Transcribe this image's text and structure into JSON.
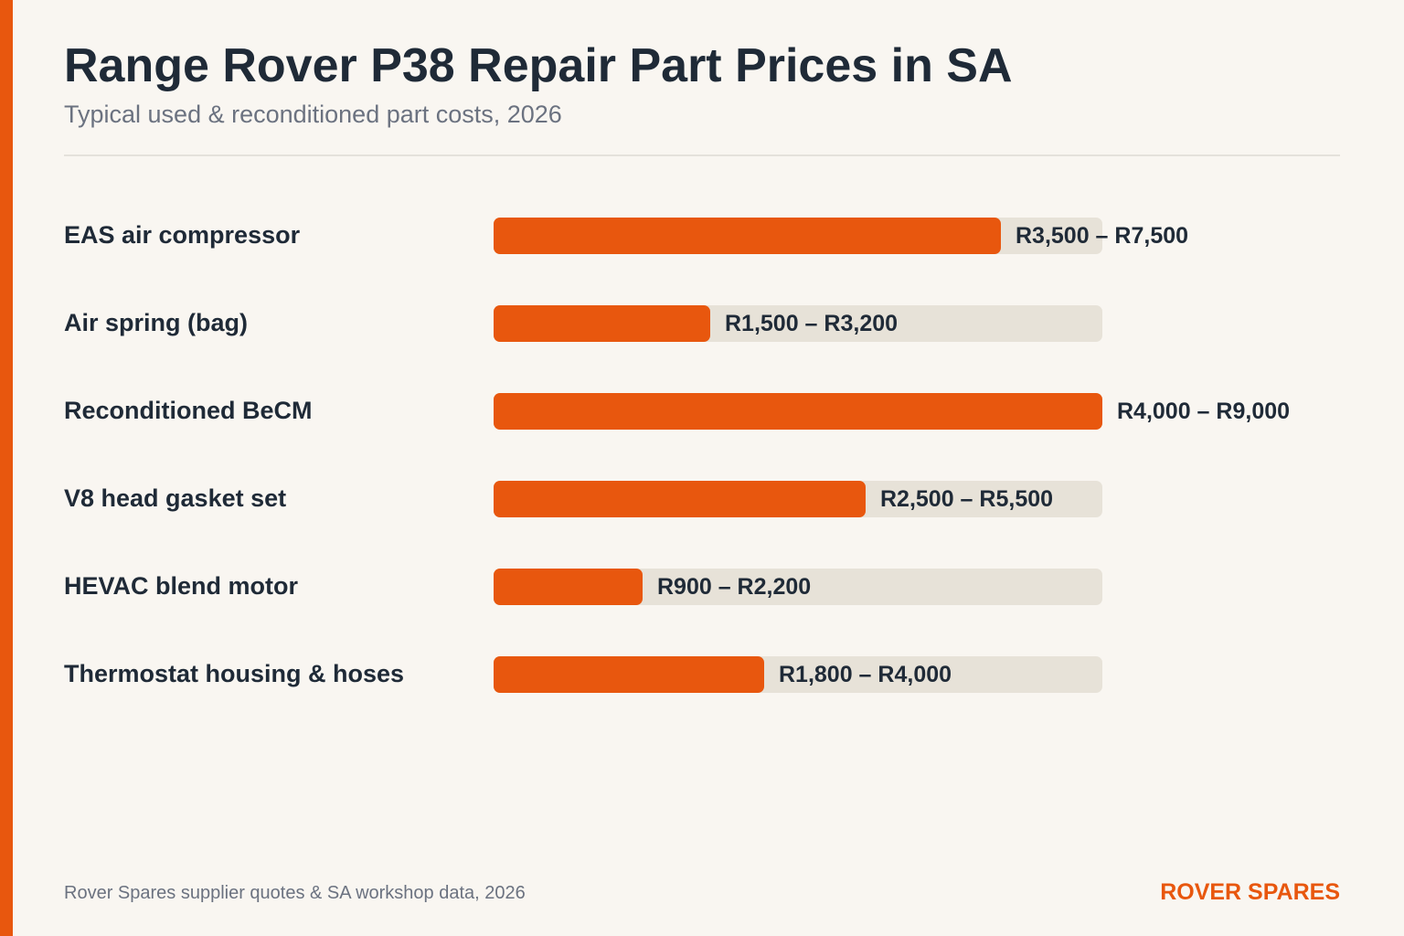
{
  "brand": {
    "name": "ROVER SPARES",
    "accent_color": "#e8570e"
  },
  "header": {
    "title": "Range Rover P38 Repair Part Prices in SA",
    "subtitle": "Typical used & reconditioned part costs, 2026"
  },
  "footer": {
    "source": "Rover Spares supplier quotes & SA workshop data, 2026"
  },
  "chart_data": {
    "type": "bar",
    "orientation": "horizontal",
    "currency": "R",
    "categories": [
      "EAS air compressor",
      "Air spring (bag)",
      "Reconditioned BeCM",
      "V8 head gasket set",
      "HEVAC blend motor",
      "Thermostat housing & hoses"
    ],
    "series": [
      {
        "values": [
          7500,
          3200,
          9000,
          5500,
          2200,
          4000
        ],
        "ranges": [
          [
            3500,
            7500
          ],
          [
            1500,
            3200
          ],
          [
            4000,
            9000
          ],
          [
            2500,
            5500
          ],
          [
            900,
            2200
          ],
          [
            1800,
            4000
          ]
        ]
      }
    ],
    "value_labels": [
      "R3,500 – R7,500",
      "R1,500 – R3,200",
      "R4,000 – R9,000",
      "R2,500 – R5,500",
      "R900 – R2,200",
      "R1,800 – R4,000"
    ],
    "xlim": [
      0,
      9000
    ],
    "bar_color": "#e8570e",
    "track_color": "#e7e2d8",
    "grid": false,
    "legend": "none"
  }
}
